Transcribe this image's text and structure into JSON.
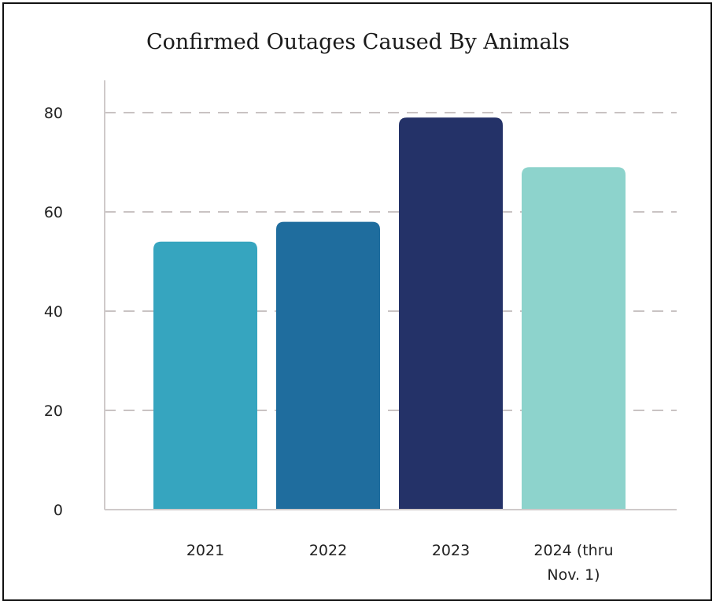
{
  "chart_data": {
    "type": "bar",
    "title": "Confirmed Outages Caused By Animals",
    "xlabel": "",
    "ylabel": "",
    "categories": [
      "2021",
      "2022",
      "2023",
      "2024 (thru Nov. 1)"
    ],
    "values": [
      54,
      58,
      79,
      69
    ],
    "ylim": [
      0,
      80
    ],
    "yticks": [
      0,
      20,
      40,
      60,
      80
    ],
    "bar_colors": [
      "#36a5bf",
      "#1f6d9e",
      "#243268",
      "#8dd3cc"
    ],
    "grid": "dashed horizontal",
    "legend": "none"
  }
}
